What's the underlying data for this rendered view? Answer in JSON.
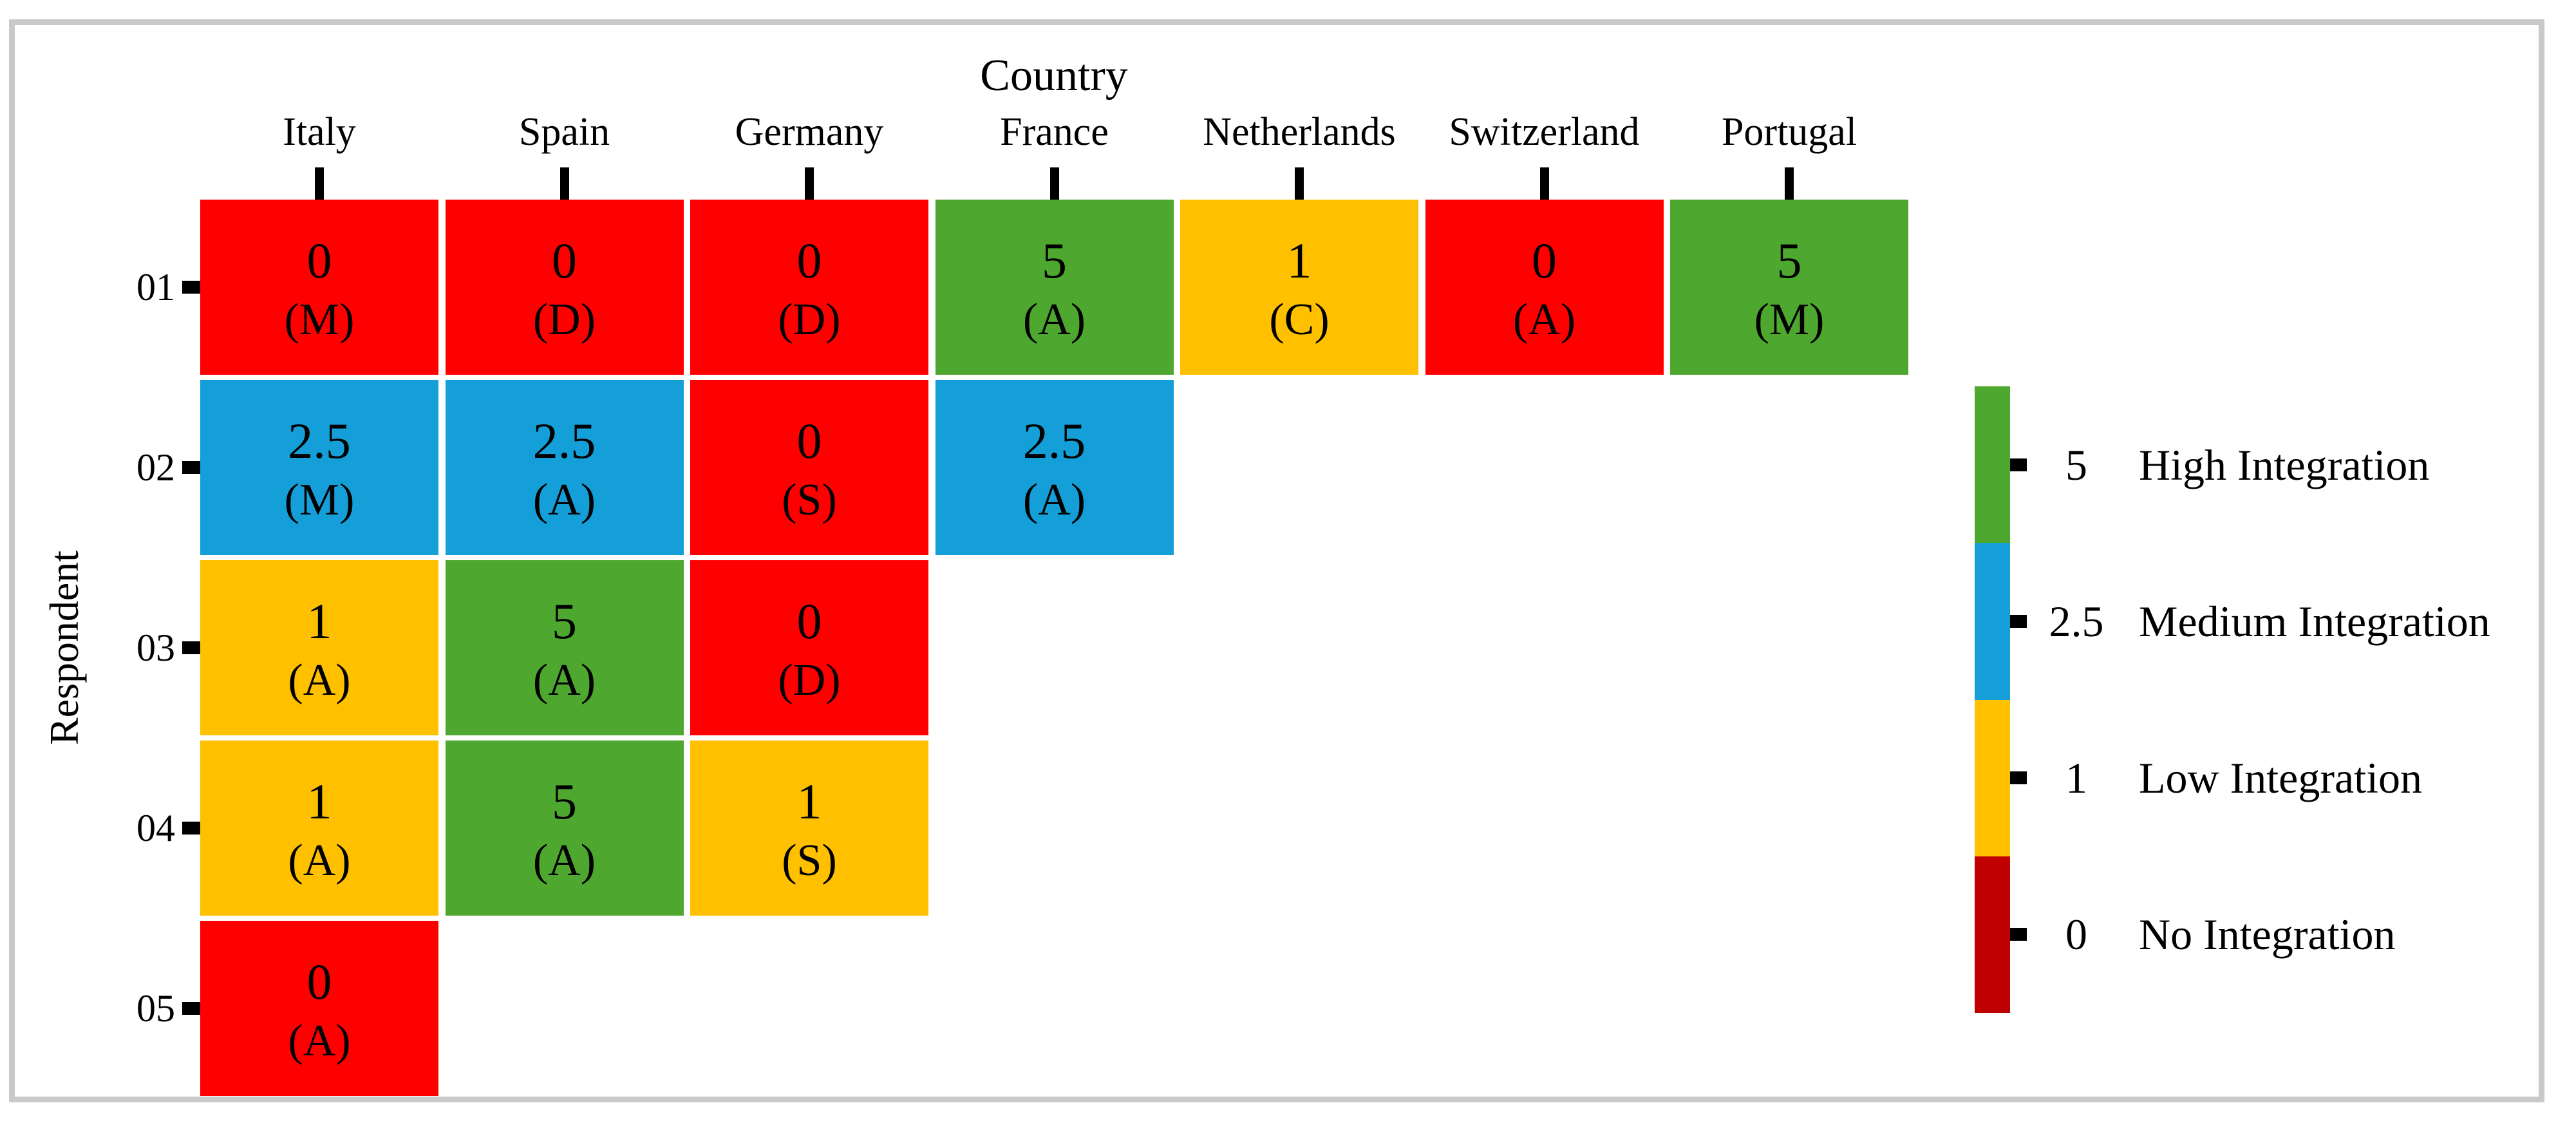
{
  "title": "Country",
  "y_axis_label": "Respondent",
  "colors": {
    "high_green": "#4EA72E",
    "medium_blue": "#149FD8",
    "low_yellow": "#FFC000",
    "zero_red_cell": "#FF0000",
    "zero_red_legend": "#C00000",
    "frame_gray": "#C9C9C9",
    "tick_black": "#000000"
  },
  "chart_data": {
    "type": "heatmap",
    "title": "Country",
    "xlabel": "Country",
    "ylabel": "Respondent",
    "x_categories": [
      "Italy",
      "Spain",
      "Germany",
      "France",
      "Netherlands",
      "Switzerland",
      "Portugal"
    ],
    "y_categories": [
      "01",
      "02",
      "03",
      "04",
      "05"
    ],
    "value_scale": {
      "5": "High Integration",
      "2.5": "Medium Integration",
      "1": "Low Integration",
      "0": "No Integration"
    },
    "cells": [
      {
        "respondent": "01",
        "country": "Italy",
        "value": 0,
        "value_text": "0",
        "note_text": "(M)",
        "level": "No Integration",
        "color": "#FF0000"
      },
      {
        "respondent": "01",
        "country": "Spain",
        "value": 0,
        "value_text": "0",
        "note_text": "(D)",
        "level": "No Integration",
        "color": "#FF0000"
      },
      {
        "respondent": "01",
        "country": "Germany",
        "value": 0,
        "value_text": "0",
        "note_text": "(D)",
        "level": "No Integration",
        "color": "#FF0000"
      },
      {
        "respondent": "01",
        "country": "France",
        "value": 5,
        "value_text": "5",
        "note_text": "(A)",
        "level": "High Integration",
        "color": "#4EA72E"
      },
      {
        "respondent": "01",
        "country": "Netherlands",
        "value": 1,
        "value_text": "1",
        "note_text": "(C)",
        "level": "Low Integration",
        "color": "#FFC000"
      },
      {
        "respondent": "01",
        "country": "Switzerland",
        "value": 0,
        "value_text": "0",
        "note_text": "(A)",
        "level": "No Integration",
        "color": "#FF0000"
      },
      {
        "respondent": "01",
        "country": "Portugal",
        "value": 5,
        "value_text": "5",
        "note_text": "(M)",
        "level": "High Integration",
        "color": "#4EA72E"
      },
      {
        "respondent": "02",
        "country": "Italy",
        "value": 2.5,
        "value_text": "2.5",
        "note_text": "(M)",
        "level": "Medium Integration",
        "color": "#149FD8"
      },
      {
        "respondent": "02",
        "country": "Spain",
        "value": 2.5,
        "value_text": "2.5",
        "note_text": "(A)",
        "level": "Medium Integration",
        "color": "#149FD8"
      },
      {
        "respondent": "02",
        "country": "Germany",
        "value": 0,
        "value_text": "0",
        "note_text": "(S)",
        "level": "No Integration",
        "color": "#FF0000"
      },
      {
        "respondent": "02",
        "country": "France",
        "value": 2.5,
        "value_text": "2.5",
        "note_text": "(A)",
        "level": "Medium Integration",
        "color": "#149FD8"
      },
      {
        "respondent": "03",
        "country": "Italy",
        "value": 1,
        "value_text": "1",
        "note_text": "(A)",
        "level": "Low Integration",
        "color": "#FFC000"
      },
      {
        "respondent": "03",
        "country": "Spain",
        "value": 5,
        "value_text": "5",
        "note_text": "(A)",
        "level": "High Integration",
        "color": "#4EA72E"
      },
      {
        "respondent": "03",
        "country": "Germany",
        "value": 0,
        "value_text": "0",
        "note_text": "(D)",
        "level": "No Integration",
        "color": "#FF0000"
      },
      {
        "respondent": "04",
        "country": "Italy",
        "value": 1,
        "value_text": "1",
        "note_text": "(A)",
        "level": "Low Integration",
        "color": "#FFC000"
      },
      {
        "respondent": "04",
        "country": "Spain",
        "value": 5,
        "value_text": "5",
        "note_text": "(A)",
        "level": "High Integration",
        "color": "#4EA72E"
      },
      {
        "respondent": "04",
        "country": "Germany",
        "value": 1,
        "value_text": "1",
        "note_text": "(S)",
        "level": "Low Integration",
        "color": "#FFC000"
      },
      {
        "respondent": "05",
        "country": "Italy",
        "value": 0,
        "value_text": "0",
        "note_text": "(A)",
        "level": "No Integration",
        "color": "#FF0000"
      }
    ],
    "legend": {
      "position": "right",
      "items": [
        {
          "value_text": "5",
          "label": "High Integration",
          "color": "#4EA72E"
        },
        {
          "value_text": "2.5",
          "label": "Medium Integration",
          "color": "#149FD8"
        },
        {
          "value_text": "1",
          "label": "Low Integration",
          "color": "#FFC000"
        },
        {
          "value_text": "0",
          "label": "No Integration",
          "color": "#C00000"
        }
      ]
    },
    "grid": false
  }
}
